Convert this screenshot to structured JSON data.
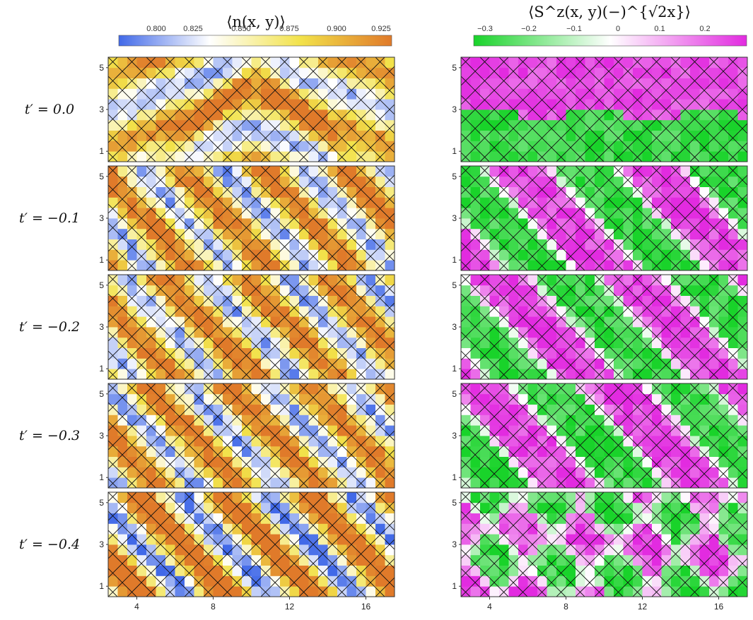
{
  "chart_data": {
    "type": "heatmap",
    "grid": {
      "x_range": [
        2.5,
        17.5
      ],
      "y_range": [
        0.5,
        5.5
      ]
    },
    "row_labels": [
      "t′ = 0.0",
      "t′ = −0.1",
      "t′ = −0.2",
      "t′ = −0.3",
      "t′ = −0.4"
    ],
    "x_ticks": [
      "4",
      "8",
      "12",
      "16"
    ],
    "y_ticks": [
      "1",
      "3",
      "5"
    ],
    "panels": [
      {
        "title": "⟨n(x, y)⟩",
        "colorbar": {
          "ticks": [
            "0.800",
            "0.825",
            "0.850",
            "0.875",
            "0.900",
            "0.925"
          ],
          "range": [
            0.78,
            0.935
          ],
          "colors": [
            "#4169e8",
            "#ffffff",
            "#f2e24a",
            "#e07a2a"
          ]
        }
      },
      {
        "title": "⟨S^z(x, y)(−)^{√2x}⟩",
        "colorbar": {
          "ticks": [
            "−0.3",
            "−0.2",
            "−0.1",
            "0",
            "0.1",
            "0.2"
          ],
          "range": [
            -0.34,
            0.28
          ],
          "colors": [
            "#19d32a",
            "#ffffff",
            "#e22be0"
          ]
        }
      }
    ],
    "patterns": [
      {
        "label": "t′ = 0.0",
        "density": "stripe pattern along y (horizontal), vertex near x=10",
        "spin": "upper half magenta, lower half green"
      },
      {
        "label": "t′ = −0.1",
        "density": "diagonal stripes",
        "spin": "diagonal green/magenta stripes"
      },
      {
        "label": "t′ = −0.2",
        "density": "diagonal stripes",
        "spin": "diagonal green/magenta stripes"
      },
      {
        "label": "t′ = −0.3",
        "density": "diagonal stripes",
        "spin": "diagonal green/magenta stripes"
      },
      {
        "label": "t′ = −0.4",
        "density": "diagonal stripes, stronger",
        "spin": "mixed diagonal domains"
      }
    ]
  }
}
